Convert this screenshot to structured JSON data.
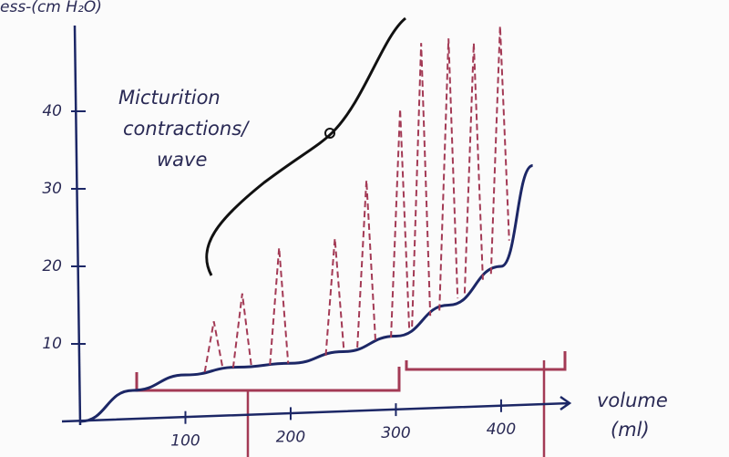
{
  "chart_data": {
    "type": "line",
    "y_label": "ess-(cm H₂O)",
    "x_label": "volume",
    "x_unit": "(ml)",
    "annotation": [
      "Micturition",
      "contractions/",
      "wave"
    ],
    "xlim": [
      0,
      465
    ],
    "ylim": [
      0,
      52
    ],
    "xticks": [
      100,
      200,
      300,
      400
    ],
    "yticks": [
      10,
      20,
      30,
      40
    ],
    "series": [
      {
        "color": "#1c2766",
        "x": [
          0,
          50,
          100,
          150,
          200,
          250,
          300,
          350,
          400,
          430
        ],
        "values": [
          0,
          4,
          6,
          7,
          7.5,
          9,
          11,
          15,
          20,
          33
        ]
      },
      {
        "color": "#a33a55",
        "style": "dashed",
        "x": [
          127,
          154,
          189,
          242,
          272,
          304,
          324,
          350,
          374,
          399
        ],
        "values": [
          12.9,
          16.5,
          22.4,
          23.6,
          31.1,
          40.3,
          48.8,
          49.4,
          48.8,
          51
        ]
      }
    ]
  }
}
